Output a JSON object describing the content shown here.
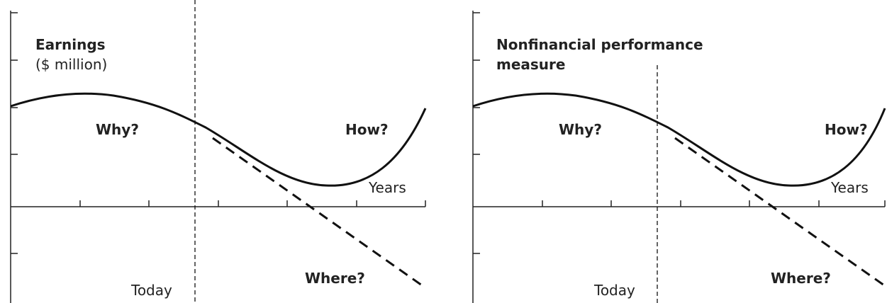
{
  "panels": [
    {
      "title": [
        "Earnings",
        "($ million)"
      ],
      "why": "Why?",
      "how": "How?",
      "where": "Where?",
      "x_axis": "Years",
      "today": "Today"
    },
    {
      "title": [
        "Nonfinancial performance",
        "measure"
      ],
      "why": "Why?",
      "how": "How?",
      "where": "Where?",
      "x_axis": "Years",
      "today": "Today"
    }
  ]
}
